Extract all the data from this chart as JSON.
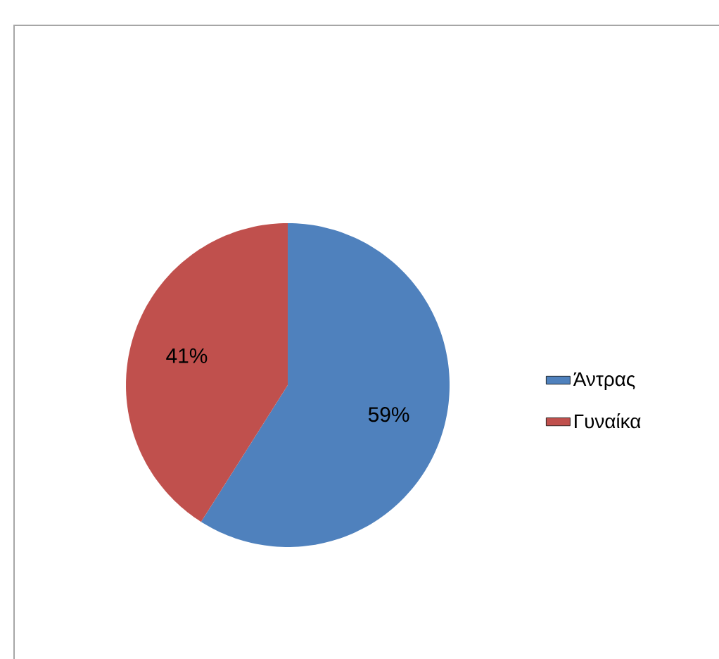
{
  "chart_data": {
    "type": "pie",
    "categories": [
      "Άντρας",
      "Γυναίκα"
    ],
    "values": [
      59,
      41
    ],
    "colors": [
      "#4f81bd",
      "#c0504d"
    ],
    "value_labels": [
      "59%",
      "41%"
    ],
    "legend": "right"
  }
}
